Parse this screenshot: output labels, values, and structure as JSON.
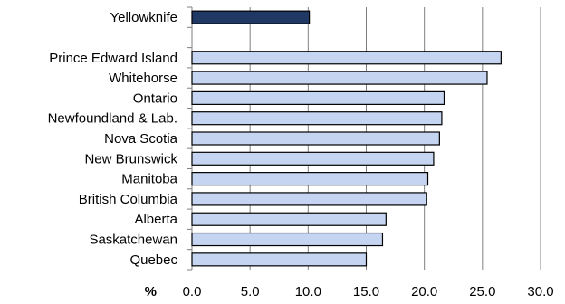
{
  "chart_data": {
    "type": "bar",
    "orientation": "horizontal",
    "xlabel": "%",
    "ylabel": "",
    "xlim": [
      0,
      30
    ],
    "xticks": [
      "0.0",
      "5.0",
      "10.0",
      "15.0",
      "20.0",
      "25.0",
      "30.0"
    ],
    "grid": true,
    "categories": [
      "Yellowknife",
      "",
      "Prince Edward Island",
      "Whitehorse",
      "Ontario",
      "Newfoundland & Lab.",
      "Nova Scotia",
      "New Brunswick",
      "Manitoba",
      "British Columbia",
      "Alberta",
      "Saskatchewan",
      "Quebec"
    ],
    "values": [
      10.1,
      null,
      26.6,
      25.4,
      21.7,
      21.5,
      21.3,
      20.8,
      20.3,
      20.2,
      16.7,
      16.4,
      15.0
    ],
    "colors": {
      "highlight": "#1f3864",
      "default": "#c5d4f0",
      "edge": "#000000",
      "grid": "#808080"
    },
    "highlight_index": 0
  }
}
